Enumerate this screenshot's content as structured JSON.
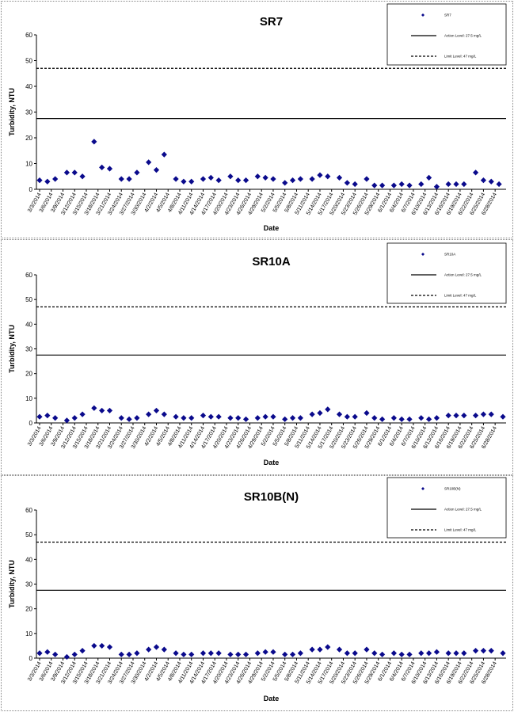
{
  "chart_data": [
    {
      "type": "scatter",
      "title": "SR7",
      "xlabel": "Date",
      "ylabel": "Turbidity, NTU",
      "ylim": [
        0,
        60
      ],
      "yticks": [
        0,
        10,
        20,
        30,
        40,
        50,
        60
      ],
      "x": [
        "3/3/2014",
        "3/6/2014",
        "3/9/2014",
        "3/12/2014",
        "3/15/2014",
        "3/18/2014",
        "3/21/2014",
        "3/24/2014",
        "3/27/2014",
        "3/30/2014",
        "4/2/2014",
        "4/5/2014",
        "4/8/2014",
        "4/11/2014",
        "4/14/2014",
        "4/17/2014",
        "4/20/2014",
        "4/23/2014",
        "4/26/2014",
        "4/29/2014",
        "5/2/2014",
        "5/5/2014",
        "5/8/2014",
        "5/11/2014",
        "5/14/2014",
        "5/17/2014",
        "5/20/2014",
        "5/23/2014",
        "5/26/2014",
        "5/29/2014",
        "6/1/2014",
        "6/4/2014",
        "6/7/2014",
        "6/10/2014",
        "6/13/2014",
        "6/16/2014",
        "6/19/2014",
        "6/22/2014",
        "6/25/2014",
        "6/28/2014"
      ],
      "series": [
        {
          "name": "SR7",
          "x_day": [
            0,
            2,
            4,
            7,
            9,
            11,
            14,
            16,
            18,
            21,
            23,
            25,
            28,
            30,
            32,
            35,
            37,
            39,
            42,
            44,
            46,
            49,
            51,
            53,
            56,
            58,
            60,
            63,
            65,
            67,
            70,
            72,
            74,
            77,
            79,
            81,
            84,
            86,
            88,
            91,
            93,
            95,
            98,
            100,
            102,
            105,
            107,
            109,
            112,
            114,
            116,
            118
          ],
          "values": [
            3.5,
            3.0,
            4.0,
            6.5,
            6.5,
            5.0,
            18.5,
            8.5,
            8.0,
            4.0,
            4.0,
            6.5,
            10.5,
            7.5,
            13.5,
            4.0,
            3.0,
            3.0,
            4.0,
            4.5,
            3.5,
            5.0,
            3.5,
            3.5,
            5.0,
            4.5,
            4.0,
            2.5,
            3.5,
            4.0,
            4.0,
            5.5,
            5.0,
            4.5,
            2.5,
            2.0,
            4.0,
            1.5,
            1.5,
            1.5,
            2.0,
            1.5,
            2.0,
            4.5,
            1.0,
            2.0,
            2.0,
            2.0,
            6.5,
            3.5,
            3.0,
            2.0
          ],
          "color": "#0a0a8c"
        }
      ],
      "reference_lines": [
        {
          "name": "Action Level: 27.5 mg/L",
          "y": 27.5,
          "style": "solid"
        },
        {
          "name": "Limit Level: 47 mg/L",
          "y": 47,
          "style": "dashed"
        }
      ],
      "legend_position": "top-right",
      "grid": false
    },
    {
      "type": "scatter",
      "title": "SR10A",
      "xlabel": "Date",
      "ylabel": "Turbidity, NTU",
      "ylim": [
        0,
        60
      ],
      "yticks": [
        0,
        10,
        20,
        30,
        40,
        50,
        60
      ],
      "x": [
        "3/3/2014",
        "3/6/2014",
        "3/9/2014",
        "3/12/2014",
        "3/15/2014",
        "3/18/2014",
        "3/21/2014",
        "3/24/2014",
        "3/27/2014",
        "3/30/2014",
        "4/2/2014",
        "4/5/2014",
        "4/8/2014",
        "4/11/2014",
        "4/14/2014",
        "4/17/2014",
        "4/20/2014",
        "4/23/2014",
        "4/26/2014",
        "4/29/2014",
        "5/2/2014",
        "5/5/2014",
        "5/8/2014",
        "5/11/2014",
        "5/14/2014",
        "5/17/2014",
        "5/20/2014",
        "5/23/2014",
        "5/26/2014",
        "5/29/2014",
        "6/1/2014",
        "6/4/2014",
        "6/7/2014",
        "6/10/2014",
        "6/13/2014",
        "6/16/2014",
        "6/19/2014",
        "6/22/2014",
        "6/25/2014",
        "6/28/2014"
      ],
      "series": [
        {
          "name": "SR10A",
          "x_day": [
            0,
            2,
            4,
            7,
            9,
            11,
            14,
            16,
            18,
            21,
            23,
            25,
            28,
            30,
            32,
            35,
            37,
            39,
            42,
            44,
            46,
            49,
            51,
            53,
            56,
            58,
            60,
            63,
            65,
            67,
            70,
            72,
            74,
            77,
            79,
            81,
            84,
            86,
            88,
            91,
            93,
            95,
            98,
            100,
            102,
            105,
            107,
            109,
            112,
            114,
            116,
            119
          ],
          "values": [
            2.5,
            3.0,
            2.0,
            1.0,
            2.0,
            3.5,
            6.0,
            5.0,
            5.0,
            2.0,
            1.5,
            2.0,
            3.5,
            5.0,
            3.5,
            2.5,
            2.0,
            2.0,
            3.0,
            2.5,
            2.5,
            2.0,
            2.0,
            1.5,
            2.0,
            2.5,
            2.5,
            1.5,
            2.0,
            2.0,
            3.5,
            4.0,
            5.5,
            3.5,
            2.5,
            2.5,
            4.0,
            2.0,
            1.5,
            2.0,
            1.5,
            1.5,
            2.0,
            1.5,
            2.0,
            3.0,
            3.0,
            3.0,
            3.0,
            3.5,
            3.5,
            2.5
          ],
          "color": "#0a0a8c"
        }
      ],
      "reference_lines": [
        {
          "name": "Action Level: 27.5 mg/L",
          "y": 27.5,
          "style": "solid"
        },
        {
          "name": "Limit Level: 47 mg/L",
          "y": 47,
          "style": "dashed"
        }
      ],
      "legend_position": "top-right",
      "grid": false
    },
    {
      "type": "scatter",
      "title": "SR10B(N)",
      "xlabel": "Date",
      "ylabel": "Turbidity, NTU",
      "ylim": [
        0,
        60
      ],
      "yticks": [
        0,
        10,
        20,
        30,
        40,
        50,
        60
      ],
      "x": [
        "3/3/2014",
        "3/6/2014",
        "3/9/2014",
        "3/12/2014",
        "3/15/2014",
        "3/18/2014",
        "3/21/2014",
        "3/24/2014",
        "3/27/2014",
        "3/30/2014",
        "4/2/2014",
        "4/5/2014",
        "4/8/2014",
        "4/11/2014",
        "4/14/2014",
        "4/17/2014",
        "4/20/2014",
        "4/23/2014",
        "4/26/2014",
        "4/29/2014",
        "5/2/2014",
        "5/5/2014",
        "5/8/2014",
        "5/11/2014",
        "5/14/2014",
        "5/17/2014",
        "5/20/2014",
        "5/23/2014",
        "5/26/2014",
        "5/29/2014",
        "6/1/2014",
        "6/4/2014",
        "6/7/2014",
        "6/10/2014",
        "6/13/2014",
        "6/16/2014",
        "6/19/2014",
        "6/22/2014",
        "6/25/2014",
        "6/28/2014"
      ],
      "series": [
        {
          "name": "SR10B(N)",
          "x_day": [
            0,
            2,
            4,
            7,
            9,
            11,
            14,
            16,
            18,
            21,
            23,
            25,
            28,
            30,
            32,
            35,
            37,
            39,
            42,
            44,
            46,
            49,
            51,
            53,
            56,
            58,
            60,
            63,
            65,
            67,
            70,
            72,
            74,
            77,
            79,
            81,
            84,
            86,
            88,
            91,
            93,
            95,
            98,
            100,
            102,
            105,
            107,
            109,
            112,
            114,
            116,
            119
          ],
          "values": [
            2.0,
            2.5,
            1.5,
            0.5,
            1.5,
            3.0,
            5.0,
            5.0,
            4.5,
            1.5,
            1.5,
            2.0,
            3.5,
            4.5,
            3.5,
            2.0,
            1.5,
            1.5,
            2.0,
            2.0,
            2.0,
            1.5,
            1.5,
            1.5,
            2.0,
            2.5,
            2.5,
            1.5,
            1.5,
            2.0,
            3.5,
            3.5,
            4.5,
            3.5,
            2.0,
            2.0,
            3.5,
            2.0,
            1.5,
            2.0,
            1.5,
            1.5,
            2.0,
            2.0,
            2.5,
            2.0,
            2.0,
            2.0,
            3.0,
            3.0,
            3.0,
            2.0
          ],
          "color": "#0a0a8c"
        }
      ],
      "reference_lines": [
        {
          "name": "Action Level: 27.5 mg/L",
          "y": 27.5,
          "style": "solid"
        },
        {
          "name": "Limit Level: 47 mg/L",
          "y": 47,
          "style": "dashed"
        }
      ],
      "legend_position": "top-right",
      "grid": false
    }
  ]
}
